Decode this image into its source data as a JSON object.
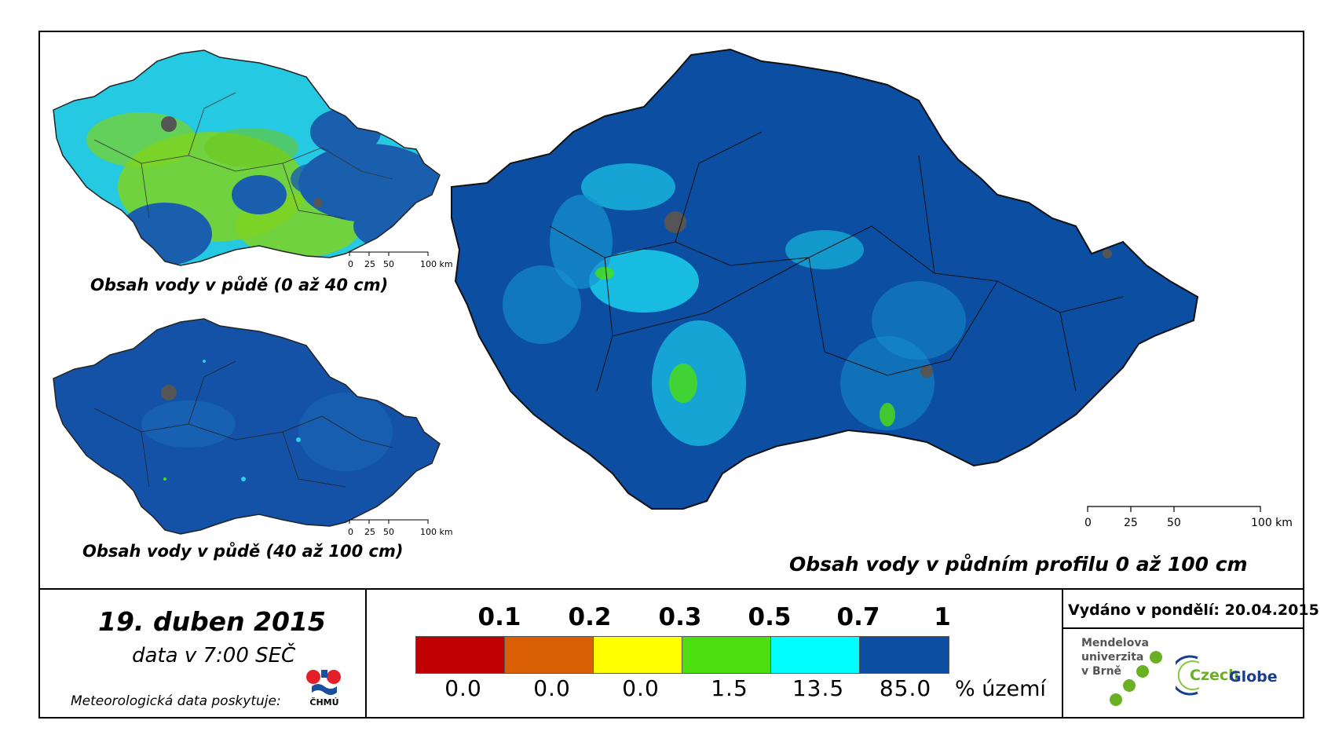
{
  "maps": {
    "top_left_title": "Obsah vody v půdě (0 až 40 cm)",
    "bottom_left_title": "Obsah vody v půdě (40 až 100 cm)",
    "main_title": "Obsah vody v půdním profilu 0 až 100 cm"
  },
  "scalebar": {
    "ticks": [
      "0",
      "25",
      "50",
      "100 km"
    ]
  },
  "info": {
    "date": "19. duben 2015",
    "time": "data v 7:00 SEČ",
    "provider": "Meteorologická data poskytuje:",
    "provider_logo_text": "ČHMÚ"
  },
  "legend": {
    "classes": [
      {
        "upper": "0.1",
        "color": "#c00000",
        "percent": "0.0"
      },
      {
        "upper": "0.2",
        "color": "#d95f02",
        "percent": "0.0"
      },
      {
        "upper": "0.3",
        "color": "#ffff00",
        "percent": "0.0"
      },
      {
        "upper": "0.5",
        "color": "#4cde0e",
        "percent": "1.5"
      },
      {
        "upper": "0.7",
        "color": "#00ffff",
        "percent": "13.5"
      },
      {
        "upper": "1",
        "color": "#0b4ea2",
        "percent": "85.0"
      }
    ],
    "unit": "% území"
  },
  "issued": {
    "text": "Vydáno v pondělí: 20.04.2015"
  },
  "logos": {
    "mendel_line1": "Mendelova",
    "mendel_line2": "univerzita",
    "mendel_line3": "v Brně",
    "czechglobe_czech": "Czech",
    "czechglobe_globe": "Globe"
  }
}
